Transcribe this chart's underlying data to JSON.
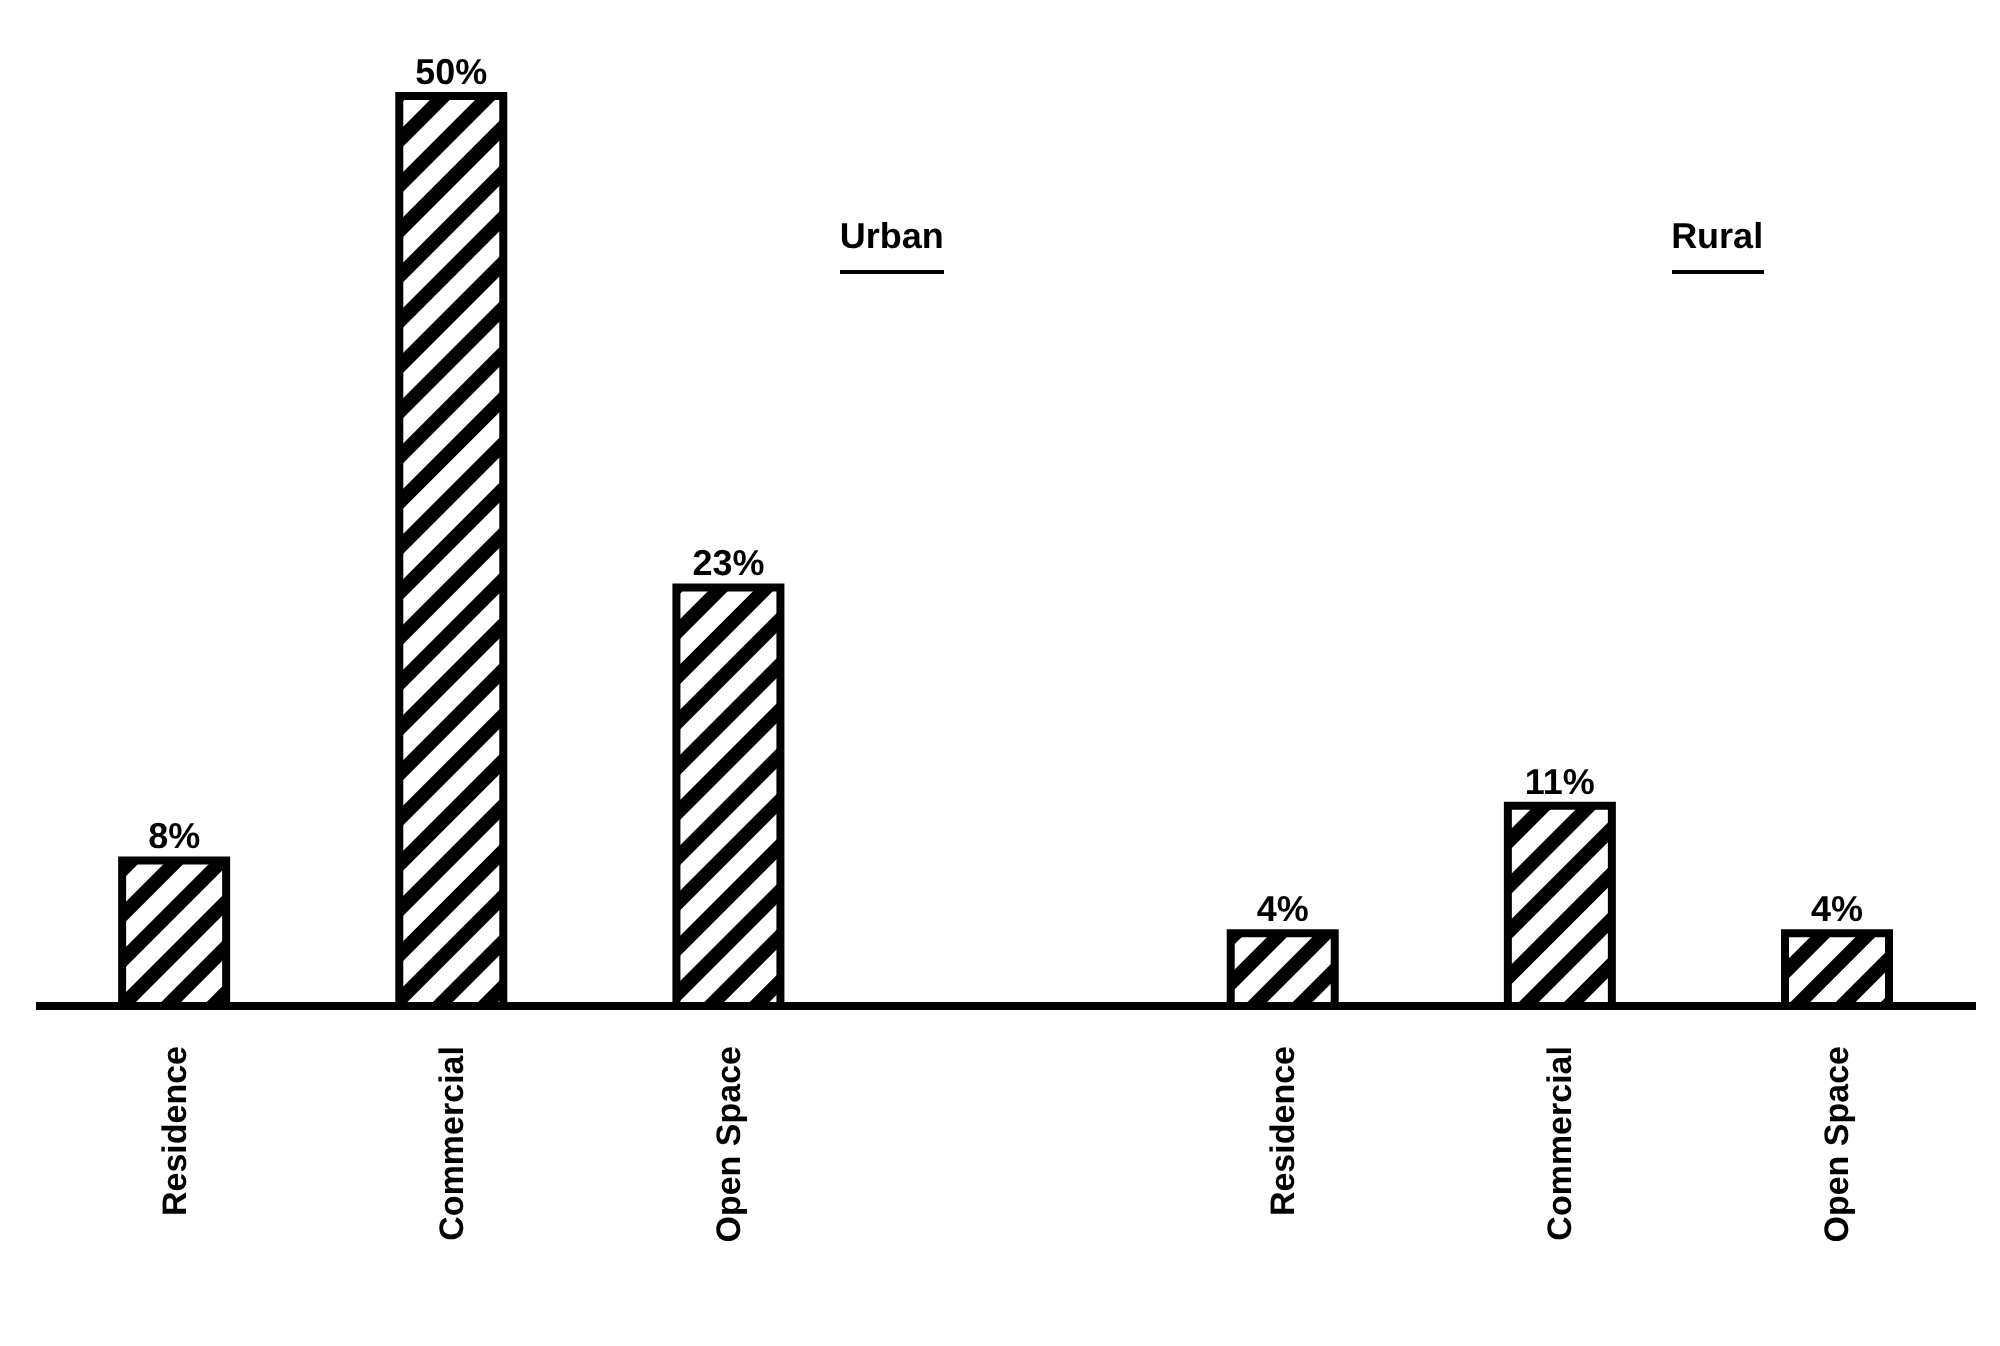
{
  "chart_data": {
    "type": "bar",
    "categories": [
      "Residence",
      "Commercial",
      "Open Space",
      null,
      "Residence",
      "Commercial",
      "Open Space"
    ],
    "values": [
      8,
      50,
      23,
      null,
      4,
      11,
      4
    ],
    "value_labels": [
      "8%",
      "50%",
      "23%",
      null,
      "4%",
      "11%",
      "4%"
    ],
    "color": "#000000",
    "annotations": [
      "Urban",
      "Rural"
    ],
    "grid": false,
    "legend": false
  }
}
